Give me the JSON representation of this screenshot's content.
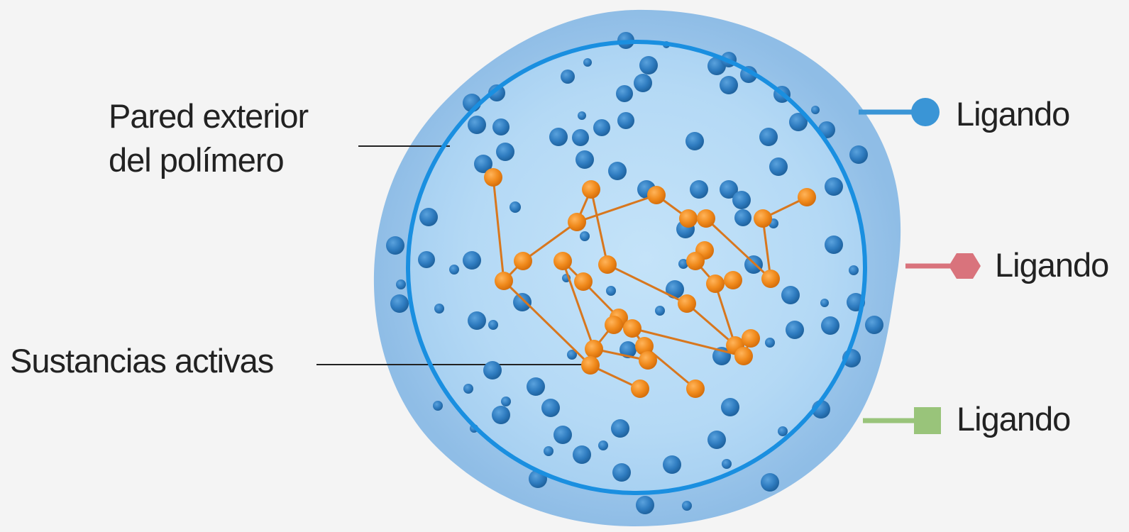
{
  "labels": {
    "outer_wall_line1": "Pared exterior",
    "outer_wall_line2": "del polímero",
    "active_substances": "Sustancias activas",
    "ligand_1": "Ligando",
    "ligand_2": "Ligando",
    "ligand_3": "Ligando"
  },
  "colors": {
    "background": "#f4f4f4",
    "shell": "#9cc6eb",
    "inner_core": "#b9dcf6",
    "membrane_ring": "#1a8fe0",
    "blue_particle": "#2f7cc0",
    "active_node": "#f08a1c",
    "active_link": "#d8771e",
    "ligand_circle": "#3a95d6",
    "ligand_hexagon": "#d9737c",
    "ligand_square": "#99c47a"
  },
  "icons": {
    "ligand_1": "circle-ligand-icon",
    "ligand_2": "hexagon-ligand-icon",
    "ligand_3": "square-ligand-icon"
  }
}
